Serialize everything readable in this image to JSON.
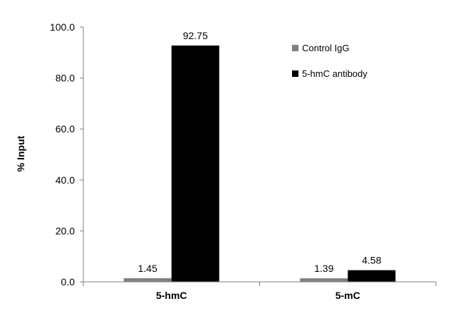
{
  "chart_data": {
    "type": "bar",
    "title": "",
    "xlabel": "",
    "ylabel": "% Input",
    "ylim": [
      0,
      100
    ],
    "yticks": [
      "0.0",
      "20.0",
      "40.0",
      "60.0",
      "80.0",
      "100.0"
    ],
    "categories": [
      "5-hmC",
      "5-mC"
    ],
    "series": [
      {
        "name": "Control IgG",
        "color": "#808080",
        "values": [
          1.45,
          1.39
        ],
        "labels": [
          "1.45",
          "1.39"
        ]
      },
      {
        "name": "5-hmC antibody",
        "color": "#000000",
        "values": [
          92.75,
          4.58
        ],
        "labels": [
          "92.75",
          "4.58"
        ]
      }
    ],
    "legend_position": "top-right",
    "grid": false
  }
}
